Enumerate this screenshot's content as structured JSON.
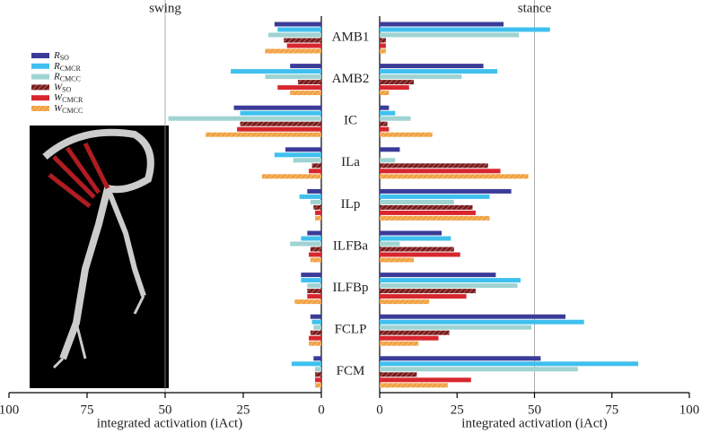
{
  "chart_data": {
    "type": "bar",
    "orientation": "horizontal",
    "categories": [
      "AMB1",
      "AMB2",
      "IC",
      "ILa",
      "ILp",
      "ILFBa",
      "ILFBp",
      "FCLP",
      "FCM"
    ],
    "xlabel": "integrated activation (iAct)",
    "series": [
      {
        "name": "R",
        "subscript": "SO",
        "color": "#3b3b98",
        "hatch": false
      },
      {
        "name": "R",
        "subscript": "CMCR",
        "color": "#3fc0ef",
        "hatch": false
      },
      {
        "name": "R",
        "subscript": "CMCC",
        "color": "#9fd3d2",
        "hatch": false
      },
      {
        "name": "W",
        "subscript": "SO",
        "color": "#7a1b1b",
        "hatch": true
      },
      {
        "name": "W",
        "subscript": "CMCR",
        "color": "#d8262e",
        "hatch": false
      },
      {
        "name": "W",
        "subscript": "CMCC",
        "color": "#f0a040",
        "hatch": true
      }
    ],
    "panels": [
      {
        "title": "swing",
        "xlim": [
          100,
          0
        ],
        "xticks": [
          100,
          75,
          50,
          25,
          0
        ],
        "reference_line": 50,
        "series": [
          {
            "values": [
              15,
              10,
              28,
              11.5,
              4.5,
              4.5,
              6.5,
              3.5,
              2.5
            ]
          },
          {
            "values": [
              14,
              29,
              26,
              15,
              7,
              6.5,
              6.5,
              3,
              9.5
            ]
          },
          {
            "values": [
              17,
              18,
              49,
              9,
              3.5,
              10,
              4.5,
              2.5,
              2
            ]
          },
          {
            "values": [
              12,
              7.5,
              26,
              3,
              2.5,
              3.5,
              4.5,
              3.5,
              2
            ]
          },
          {
            "values": [
              11,
              14,
              27,
              4,
              2,
              4,
              4.5,
              4,
              2
            ]
          },
          {
            "values": [
              18,
              10,
              37,
              19,
              2,
              3.5,
              8.5,
              4,
              2
            ]
          }
        ]
      },
      {
        "title": "stance",
        "xlim": [
          0,
          100
        ],
        "xticks": [
          0,
          25,
          50,
          75,
          100
        ],
        "reference_line": 50,
        "series": [
          {
            "values": [
              40,
              33.5,
              3,
              6.5,
              42.5,
              20,
              37.5,
              60,
              52
            ]
          },
          {
            "values": [
              55,
              38,
              5,
              0,
              35.5,
              23,
              45.5,
              66,
              83.5
            ]
          },
          {
            "values": [
              45,
              26.5,
              10,
              5,
              24,
              6.5,
              44.5,
              49,
              64
            ]
          },
          {
            "values": [
              2,
              11,
              2.5,
              35,
              30,
              24,
              31,
              22.5,
              12
            ]
          },
          {
            "values": [
              2,
              9.5,
              3,
              39,
              31,
              26,
              28,
              19,
              29.5
            ]
          },
          {
            "values": [
              2,
              3,
              17,
              48,
              35.5,
              11,
              16,
              12.5,
              22
            ]
          }
        ]
      }
    ]
  }
}
